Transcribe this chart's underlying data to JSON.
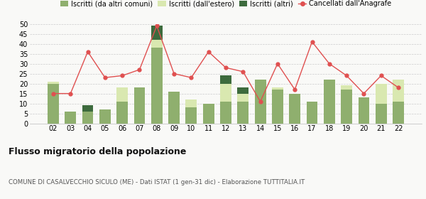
{
  "years": [
    "02",
    "03",
    "04",
    "05",
    "06",
    "07",
    "08",
    "09",
    "10",
    "11",
    "12",
    "13",
    "14",
    "15",
    "16",
    "17",
    "18",
    "19",
    "20",
    "21",
    "22"
  ],
  "iscritti_comuni": [
    20,
    6,
    6,
    7,
    11,
    18,
    38,
    16,
    8,
    10,
    11,
    11,
    22,
    17,
    15,
    11,
    22,
    17,
    13,
    10,
    11
  ],
  "iscritti_estero": [
    1,
    0,
    0,
    0,
    7,
    0,
    4,
    0,
    4,
    0,
    9,
    4,
    0,
    1,
    0,
    0,
    0,
    2,
    0,
    10,
    11
  ],
  "iscritti_altri": [
    0,
    0,
    3,
    0,
    0,
    0,
    7,
    0,
    0,
    0,
    4,
    3,
    0,
    0,
    0,
    0,
    0,
    0,
    0,
    0,
    0
  ],
  "cancellati": [
    15,
    15,
    36,
    23,
    24,
    27,
    49,
    25,
    23,
    36,
    28,
    26,
    11,
    30,
    17,
    41,
    30,
    24,
    15,
    24,
    18
  ],
  "color_comuni": "#8faf6e",
  "color_estero": "#d9e8b0",
  "color_altri": "#3d6b3d",
  "color_cancellati": "#e05050",
  "yticks": [
    0,
    5,
    10,
    15,
    20,
    25,
    30,
    35,
    40,
    45,
    50
  ],
  "title": "Flusso migratorio della popolazione",
  "subtitle": "COMUNE DI CASALVECCHIO SICULO (ME) - Dati ISTAT (1 gen-31 dic) - Elaborazione TUTTITALIA.IT",
  "legend_labels": [
    "Iscritti (da altri comuni)",
    "Iscritti (dall'estero)",
    "Iscritti (altri)",
    "Cancellati dall'Anagrafe"
  ],
  "bg_color": "#f9f9f7"
}
